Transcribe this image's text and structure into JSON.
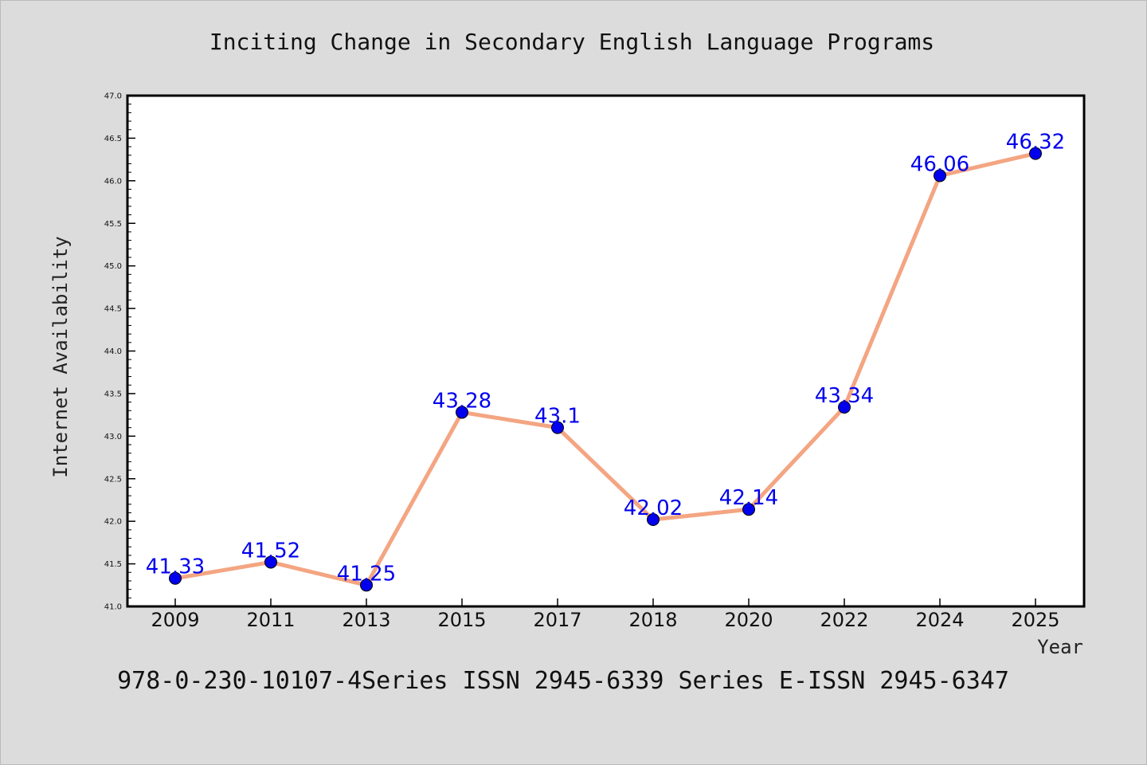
{
  "chart_data": {
    "type": "line",
    "title": "Inciting Change in Secondary English Language Programs",
    "xlabel": "Year",
    "ylabel": "Internet Availability",
    "categories": [
      "2009",
      "2011",
      "2013",
      "2015",
      "2017",
      "2018",
      "2020",
      "2022",
      "2024",
      "2025"
    ],
    "series": [
      {
        "values": [
          41.33,
          41.52,
          41.25,
          43.28,
          43.1,
          42.02,
          42.14,
          43.34,
          46.06,
          46.32
        ]
      }
    ],
    "data_labels": [
      "41.33",
      "41.52",
      "41.25",
      "43.28",
      "43.1",
      "42.02",
      "42.14",
      "43.34",
      "46.06",
      "46.32"
    ],
    "ylim": [
      41.0,
      47.0
    ],
    "yticks": [
      "41.0",
      "41.5",
      "42.0",
      "42.5",
      "43.0",
      "43.5",
      "44.0",
      "44.5",
      "45.0",
      "45.5",
      "46.0",
      "46.5",
      "47.0"
    ],
    "grid": false,
    "legend": "none",
    "line_color": "#f4a582",
    "marker_color": "#0000ee",
    "label_color": "#0000ee"
  },
  "footer": "978-0-230-10107-4Series ISSN 2945-6339 Series E-ISSN 2945-6347"
}
